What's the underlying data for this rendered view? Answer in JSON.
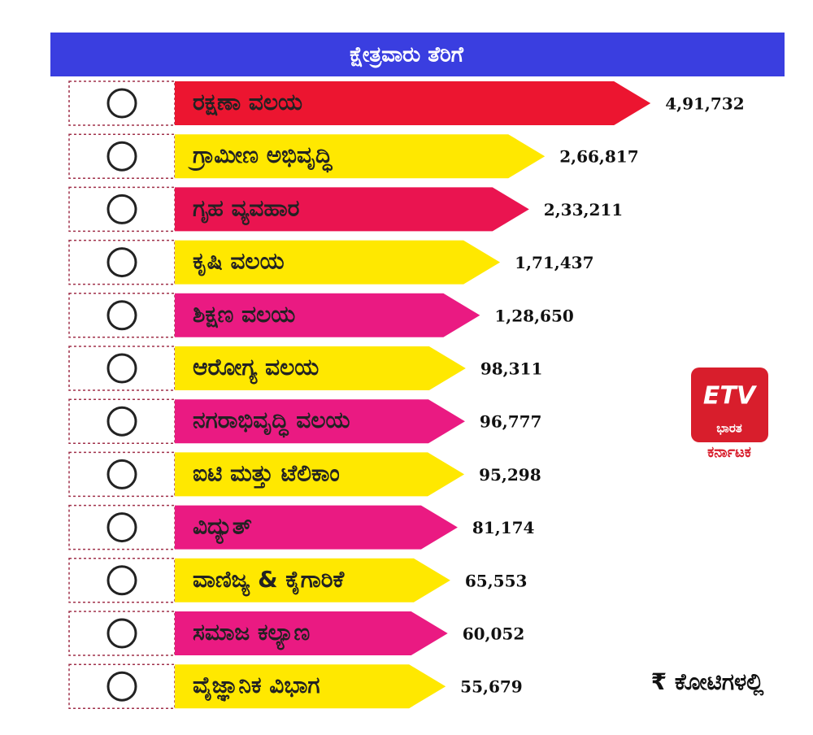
{
  "chart_data": {
    "type": "bar",
    "title": "ಕ್ಷೇತ್ರವಾರು ತೆರಿಗೆ",
    "categories": [
      "ರಕ್ಷಣಾ ವಲಯ",
      "ಗ್ರಾಮೀಣ ಅಭಿವೃದ್ಧಿ",
      "ಗೃಹ ವ್ಯವಹಾರ",
      "ಕೃಷಿ ವಲಯ",
      "ಶಿಕ್ಷಣ ವಲಯ",
      "ಆರೋಗ್ಯ ವಲಯ",
      "ನಗರಾಭಿವೃದ್ಧಿ ವಲಯ",
      "ಐಟಿ ಮತ್ತು ಟೆಲಿಕಾಂ",
      "ವಿದ್ಯುತ್",
      "ವಾಣಿಜ್ಯ & ಕೈಗಾರಿಕೆ",
      "ಸಮಾಜ ಕಲ್ಯಾಣ",
      "ವೈಜ್ಞಾನಿಕ ವಿಭಾಗ"
    ],
    "values": [
      491732,
      266817,
      233211,
      171437,
      128650,
      98311,
      96777,
      95298,
      81174,
      65553,
      60052,
      55679
    ],
    "value_labels": [
      "4,91,732",
      "2,66,817",
      "2,33,211",
      "1,71,437",
      "1,28,650",
      "98,311",
      "96,777",
      "95,298",
      "81,174",
      "65,553",
      "60,052",
      "55,679"
    ],
    "colors": [
      "#ec1530",
      "#ffe800",
      "#ea1450",
      "#ffe800",
      "#ea1a82",
      "#ffe800",
      "#ea1a82",
      "#ffe800",
      "#ea1a82",
      "#ffe800",
      "#ea1a82",
      "#ffe800"
    ],
    "unit_note": "₹ ಕೋಟಿಗಳಲ್ಲಿ",
    "logo": {
      "brand": "ETV",
      "name": "ಭಾರತ",
      "region": "ಕರ್ನಾಟಕ"
    }
  }
}
